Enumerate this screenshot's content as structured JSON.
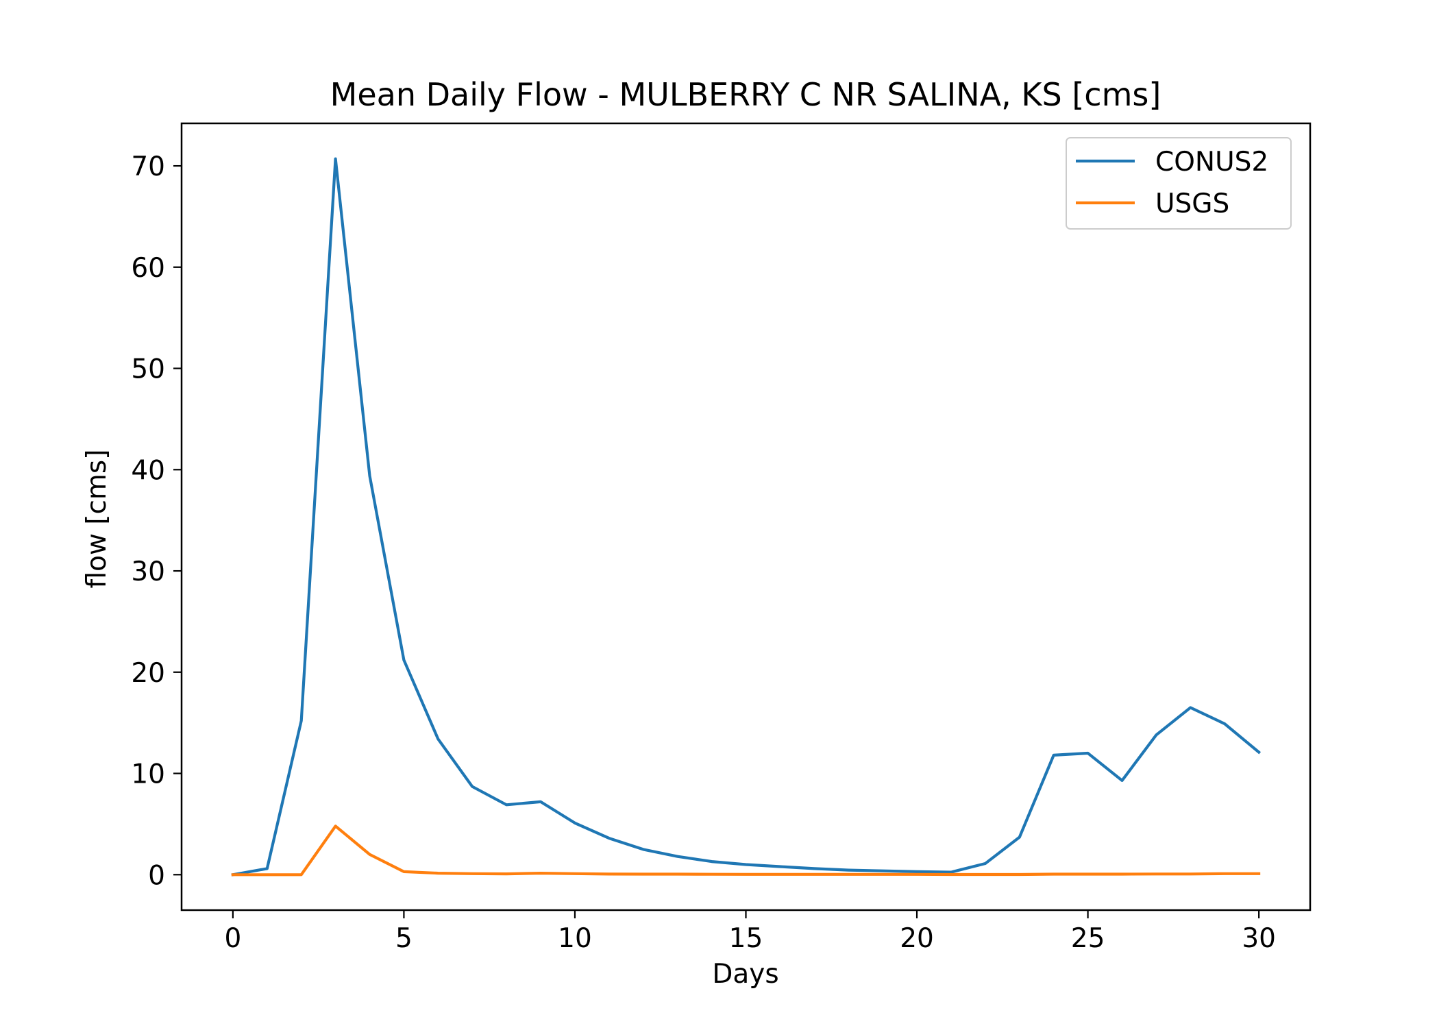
{
  "chart_data": {
    "type": "line",
    "title": "Mean Daily Flow - MULBERRY C NR SALINA, KS [cms]",
    "xlabel": "Days",
    "ylabel": "flow [cms]",
    "xlim": [
      -1.5,
      31.5
    ],
    "ylim": [
      -3.5,
      74.2
    ],
    "xticks": [
      0,
      5,
      10,
      15,
      20,
      25,
      30
    ],
    "yticks": [
      0,
      10,
      20,
      30,
      40,
      50,
      60,
      70
    ],
    "grid": false,
    "legend_position": "upper-right",
    "x": [
      0,
      1,
      2,
      3,
      4,
      5,
      6,
      7,
      8,
      9,
      10,
      11,
      12,
      13,
      14,
      15,
      16,
      17,
      18,
      19,
      20,
      21,
      22,
      23,
      24,
      25,
      26,
      27,
      28,
      29,
      30
    ],
    "series": [
      {
        "name": "CONUS2",
        "color": "#1f77b4",
        "values": [
          0.0,
          0.6,
          15.2,
          70.7,
          39.4,
          21.2,
          13.4,
          8.7,
          6.9,
          7.2,
          5.1,
          3.6,
          2.5,
          1.8,
          1.3,
          1.0,
          0.8,
          0.6,
          0.45,
          0.38,
          0.3,
          0.25,
          1.1,
          3.7,
          11.8,
          12.0,
          9.3,
          13.8,
          16.5,
          14.9,
          12.1
        ]
      },
      {
        "name": "USGS",
        "color": "#ff7f0e",
        "values": [
          0.0,
          0.0,
          0.0,
          4.8,
          2.0,
          0.3,
          0.15,
          0.1,
          0.08,
          0.15,
          0.1,
          0.06,
          0.05,
          0.05,
          0.04,
          0.03,
          0.03,
          0.03,
          0.03,
          0.03,
          0.03,
          0.02,
          0.02,
          0.02,
          0.05,
          0.05,
          0.05,
          0.07,
          0.07,
          0.1,
          0.1
        ]
      }
    ]
  }
}
